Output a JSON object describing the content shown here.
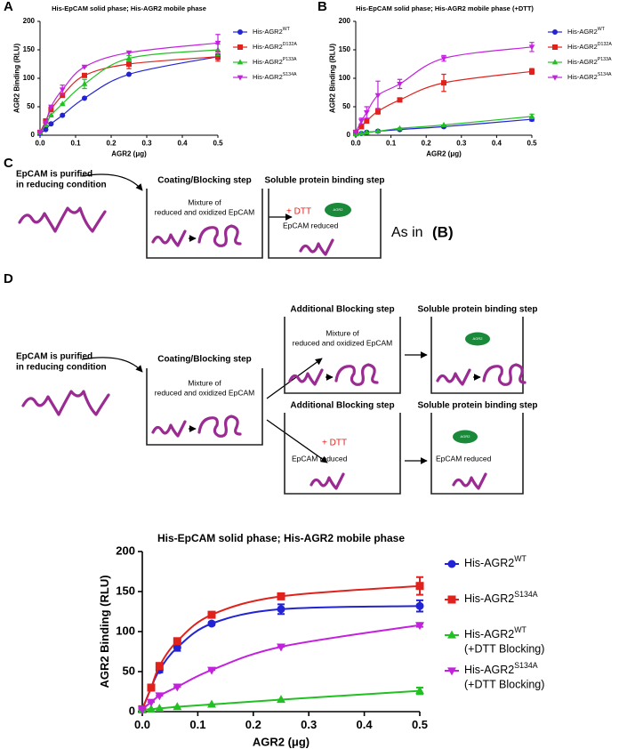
{
  "chart_data": [
    {
      "type": "line",
      "panel": "A",
      "title": "His-EpCAM solid phase; His-AGR2 mobile phase",
      "xlabel": "AGR2 (μg)",
      "ylabel": "AGR2 Binding (RLU)",
      "x": [
        0,
        0.016,
        0.031,
        0.063,
        0.125,
        0.25,
        0.5
      ],
      "xlim": [
        0,
        0.5
      ],
      "xticks": [
        {
          "value": 0,
          "label": "0.0"
        },
        0.1,
        0.2,
        0.3,
        0.4,
        0.5
      ],
      "ylim": [
        0,
        200
      ],
      "yticks": [
        0,
        50,
        100,
        150,
        200
      ],
      "series": [
        {
          "name": "His-AGR2",
          "superscript": "WT",
          "color": "#2323d6",
          "marker": "circle",
          "values": [
            3,
            10,
            20,
            35,
            65,
            107,
            138
          ],
          "errors": [
            0,
            0,
            0,
            0,
            0,
            0,
            5
          ]
        },
        {
          "name": "His-AGR2",
          "superscript": "D132A",
          "color": "#e0211c",
          "marker": "square",
          "values": [
            5,
            25,
            45,
            70,
            105,
            125,
            138
          ],
          "errors": [
            0,
            0,
            0,
            0,
            0,
            8,
            8
          ]
        },
        {
          "name": "His-AGR2",
          "superscript": "P133A",
          "color": "#23c023",
          "marker": "triangle",
          "values": [
            5,
            18,
            35,
            55,
            90,
            135,
            150
          ],
          "errors": [
            0,
            0,
            0,
            0,
            8,
            5,
            10
          ]
        },
        {
          "name": "His-AGR2",
          "superscript": "S134A",
          "color": "#c322dd",
          "marker": "triangle-down",
          "values": [
            5,
            22,
            50,
            80,
            120,
            145,
            162
          ],
          "errors": [
            0,
            0,
            0,
            8,
            0,
            0,
            15
          ]
        }
      ]
    },
    {
      "type": "line",
      "panel": "B",
      "title": "His-EpCAM solid phase; His-AGR2 mobile phase (+DTT)",
      "xlabel": "AGR2 (μg)",
      "ylabel": "AGR2 Binding (RLU)",
      "x": [
        0,
        0.016,
        0.031,
        0.063,
        0.125,
        0.25,
        0.5
      ],
      "xlim": [
        0,
        0.5
      ],
      "xticks": [
        {
          "value": 0,
          "label": "0.0"
        },
        0.1,
        0.2,
        0.3,
        0.4,
        0.5
      ],
      "ylim": [
        0,
        200
      ],
      "yticks": [
        0,
        50,
        100,
        150,
        200
      ],
      "series": [
        {
          "name": "His-AGR2",
          "superscript": "WT",
          "color": "#2323d6",
          "marker": "circle",
          "values": [
            2,
            3,
            5,
            7,
            10,
            15,
            28
          ],
          "errors": [
            2,
            2,
            2,
            2,
            2,
            2,
            3
          ]
        },
        {
          "name": "His-AGR2",
          "superscript": "D132A",
          "color": "#e0211c",
          "marker": "square",
          "values": [
            5,
            15,
            25,
            42,
            62,
            92,
            112
          ],
          "errors": [
            0,
            0,
            0,
            5,
            3,
            15,
            5
          ]
        },
        {
          "name": "His-AGR2",
          "superscript": "P133A",
          "color": "#23c023",
          "marker": "triangle",
          "values": [
            2,
            3,
            5,
            7,
            12,
            18,
            33
          ],
          "errors": [
            0,
            0,
            0,
            0,
            0,
            0,
            4
          ]
        },
        {
          "name": "His-AGR2",
          "superscript": "S134A",
          "color": "#c322dd",
          "marker": "triangle-down",
          "values": [
            5,
            25,
            40,
            70,
            90,
            135,
            155
          ],
          "errors": [
            0,
            5,
            10,
            25,
            8,
            5,
            8
          ]
        }
      ]
    },
    {
      "type": "line",
      "title": "His-EpCAM solid phase; His-AGR2 mobile phase",
      "xlabel": "AGR2 (μg)",
      "ylabel": "AGR2 Binding (RLU)",
      "x": [
        0,
        0.016,
        0.031,
        0.063,
        0.125,
        0.25,
        0.5
      ],
      "xlim": [
        0,
        0.5
      ],
      "xticks": [
        {
          "value": 0,
          "label": "0.0"
        },
        0.1,
        0.2,
        0.3,
        0.4,
        0.5
      ],
      "ylim": [
        0,
        200
      ],
      "yticks": [
        0,
        50,
        100,
        150,
        200
      ],
      "series": [
        {
          "name": "His-AGR2",
          "superscript": "WT",
          "color": "#2323d6",
          "marker": "circle",
          "values": [
            3,
            30,
            52,
            80,
            110,
            128,
            132
          ],
          "errors": [
            0,
            3,
            3,
            4,
            2,
            6,
            7
          ]
        },
        {
          "name": "His-AGR2",
          "superscript": "S134A",
          "color": "#e0211c",
          "marker": "square",
          "values": [
            3,
            30,
            57,
            88,
            121,
            144,
            157
          ],
          "errors": [
            0,
            2,
            2,
            2,
            2,
            2,
            11
          ]
        },
        {
          "name": "His-AGR2",
          "superscript": "WT",
          "note": "(+DTT Blocking)",
          "color": "#23c023",
          "marker": "triangle",
          "values": [
            2,
            3,
            4,
            6,
            9,
            15,
            26
          ],
          "errors": [
            0,
            0,
            0,
            0,
            0,
            0,
            4
          ]
        },
        {
          "name": "His-AGR2",
          "superscript": "S134A",
          "note": "(+DTT Blocking)",
          "color": "#c322dd",
          "marker": "triangle-down",
          "values": [
            3,
            12,
            20,
            31,
            52,
            81,
            108
          ],
          "errors": [
            0,
            0,
            0,
            0,
            0,
            0,
            2
          ]
        }
      ]
    }
  ],
  "diagram_c": {
    "panel": "C",
    "source": [
      "EpCAM is purified",
      "in reducing condition"
    ],
    "step1": {
      "title": "Coating/Blocking step",
      "text": [
        "Mixture of",
        "reduced and oxidized EpCAM"
      ]
    },
    "step2": {
      "title": "Soluble protein binding step",
      "reagent": "+ DTT",
      "protein": "AGR2",
      "text": "EpCAM reduced"
    },
    "note": "As in",
    "note_ref": "(B)"
  },
  "diagram_d": {
    "panel": "D",
    "source": [
      "EpCAM is purified",
      "in reducing condition"
    ],
    "step1": {
      "title": "Coating/Blocking step",
      "text": [
        "Mixture of",
        "reduced and oxidized EpCAM"
      ]
    },
    "upper": {
      "block_title": "Additional Blocking step",
      "block_text": [
        "Mixture of",
        "reduced and oxidized EpCAM"
      ],
      "bind_title": "Soluble protein binding step",
      "protein": "AGR2"
    },
    "lower": {
      "block_title": "Additional Blocking step",
      "reagent": "+ DTT",
      "block_text": "EpCAM reduced",
      "bind_title": "Soluble protein binding step",
      "protein": "AGR2",
      "bind_text": "EpCAM reduced"
    }
  }
}
